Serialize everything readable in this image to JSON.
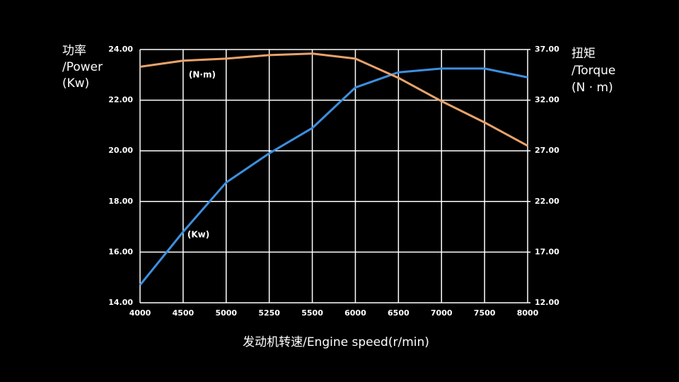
{
  "chart_data": {
    "type": "line",
    "xlabel": "发动机转速/Engine speed(r/min)",
    "ylabel": [
      "功率",
      "/Power",
      "(Kw)"
    ],
    "y2label": [
      "扭矩",
      "/Torque",
      "(N · m)"
    ],
    "categories": [
      "4000",
      "4500",
      "5000",
      "5250",
      "5500",
      "6000",
      "6500",
      "7000",
      "7500",
      "8000"
    ],
    "series": [
      {
        "name": "(Kw)",
        "color": "#3d8fe0",
        "values": [
          14.7,
          16.8,
          18.75,
          19.9,
          20.9,
          22.5,
          23.1,
          23.25,
          23.25,
          22.9
        ]
      },
      {
        "name": "(N·m)",
        "color": "#e9a26a",
        "axis": "y2",
        "values": [
          35.3,
          35.9,
          36.1,
          36.45,
          36.6,
          36.1,
          34.2,
          31.9,
          29.8,
          27.5
        ]
      }
    ],
    "ylim": [
      14,
      24
    ],
    "yticks": [
      {
        "value": 14,
        "label": "14.00"
      },
      {
        "value": 16,
        "label": "16.00"
      },
      {
        "value": 18,
        "label": "18.00"
      },
      {
        "value": 20,
        "label": "20.00"
      },
      {
        "value": 22,
        "label": "22.00"
      },
      {
        "value": 24,
        "label": "24.00"
      }
    ],
    "y2lim": [
      12,
      37
    ],
    "y2ticks": [
      {
        "value": 12,
        "label": "12.00"
      },
      {
        "value": 17,
        "label": "17.00"
      },
      {
        "value": 22,
        "label": "22.00"
      },
      {
        "value": 27,
        "label": "27.00"
      },
      {
        "value": 32,
        "label": "32.00"
      },
      {
        "value": 37,
        "label": "37.00"
      }
    ],
    "grid": true
  }
}
